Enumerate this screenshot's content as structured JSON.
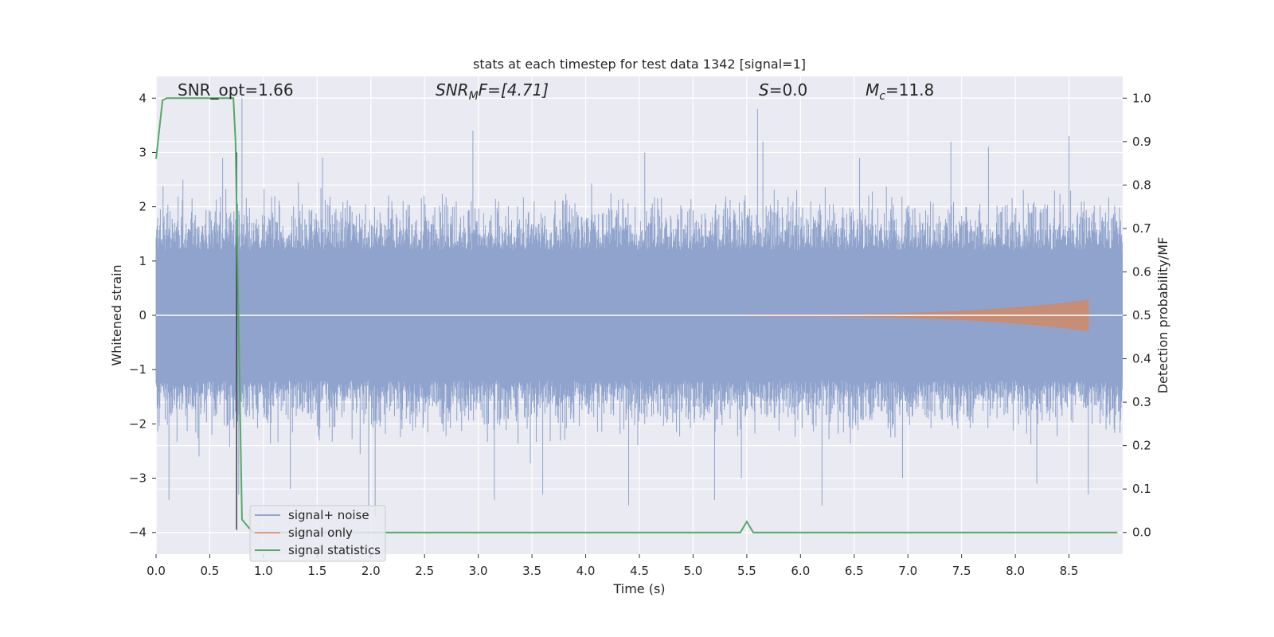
{
  "chart_data": {
    "type": "line",
    "title": "stats at each timestep for test data 1342 [signal=1]",
    "xlabel": "Time (s)",
    "ylabel_left": "Whitened strain",
    "ylabel_right": "Detection probability/MF",
    "xlim": [
      0.0,
      9.0
    ],
    "ylim_left": [
      -4.4,
      4.4
    ],
    "ylim_right": [
      -0.05,
      1.05
    ],
    "xticks": [
      0.0,
      0.5,
      1.0,
      1.5,
      2.0,
      2.5,
      3.0,
      3.5,
      4.0,
      4.5,
      5.0,
      5.5,
      6.0,
      6.5,
      7.0,
      7.5,
      8.0,
      8.5
    ],
    "xtick_labels": [
      "0.0",
      "0.5",
      "1.0",
      "1.5",
      "2.0",
      "2.5",
      "3.0",
      "3.5",
      "4.0",
      "4.5",
      "5.0",
      "5.5",
      "6.0",
      "6.5",
      "7.0",
      "7.5",
      "8.0",
      "8.5"
    ],
    "yticks_left": [
      -4,
      -3,
      -2,
      -1,
      0,
      1,
      2,
      3,
      4
    ],
    "ytick_labels_left": [
      "−4",
      "−3",
      "−2",
      "−1",
      "0",
      "1",
      "2",
      "3",
      "4"
    ],
    "yticks_right": [
      0.0,
      0.1,
      0.2,
      0.3,
      0.4,
      0.5,
      0.6,
      0.7,
      0.8,
      0.9,
      1.0
    ],
    "ytick_labels_right": [
      "0.0",
      "0.1",
      "0.2",
      "0.3",
      "0.4",
      "0.5",
      "0.6",
      "0.7",
      "0.8",
      "0.9",
      "1.0"
    ],
    "grid": true,
    "annotations": {
      "snr_opt": "SNR_opt=1.66",
      "snr_mf_main": "SNR",
      "snr_mf_sub": "M",
      "snr_mf_rest": "F=[4.71]",
      "s_main": "S",
      "s_rest": "=0.0",
      "mc_main": "M",
      "mc_sub": "c",
      "mc_rest": "=11.8"
    },
    "vertical_line_x": 0.75,
    "series": [
      {
        "name": "signal+ noise",
        "color": "#8fa3cc",
        "axis": "left",
        "kind": "noise",
        "envelope_peak_points": [
          [
            0.12,
            -3.4
          ],
          [
            0.25,
            2.5
          ],
          [
            0.4,
            -2.6
          ],
          [
            0.62,
            2.9
          ],
          [
            0.77,
            -3.3
          ],
          [
            0.8,
            4.0
          ],
          [
            1.25,
            -3.2
          ],
          [
            1.55,
            2.9
          ],
          [
            1.98,
            -3.7
          ],
          [
            2.04,
            -3.7
          ],
          [
            2.95,
            3.4
          ],
          [
            3.15,
            -3.4
          ],
          [
            3.6,
            -3.3
          ],
          [
            4.4,
            -3.5
          ],
          [
            4.55,
            3.0
          ],
          [
            5.2,
            -3.4
          ],
          [
            5.45,
            -3.0
          ],
          [
            5.6,
            3.8
          ],
          [
            5.65,
            3.2
          ],
          [
            6.2,
            -3.5
          ],
          [
            6.55,
            2.9
          ],
          [
            6.95,
            -3.0
          ],
          [
            7.4,
            3.2
          ],
          [
            7.75,
            3.1
          ],
          [
            8.2,
            -3.1
          ],
          [
            8.5,
            3.3
          ],
          [
            8.68,
            -3.3
          ]
        ]
      },
      {
        "name": "signal only",
        "color": "#dd8452",
        "axis": "left",
        "kind": "chirp",
        "x_start": 5.5,
        "x_end": 8.68,
        "amp_start": 0.01,
        "amp_end": 0.28
      },
      {
        "name": "signal statistics",
        "color": "#55a868",
        "axis": "right",
        "x": [
          0.0,
          0.06,
          0.1,
          0.72,
          0.74,
          0.76,
          0.8,
          0.9,
          5.44,
          5.5,
          5.56,
          7.5,
          8.95
        ],
        "y": [
          0.86,
          0.995,
          1.0,
          1.0,
          0.9,
          0.6,
          0.03,
          0.0,
          0.0,
          0.025,
          0.0,
          0.0,
          0.0
        ]
      }
    ],
    "legend_position": "lower-left",
    "legend": [
      "signal+ noise",
      "signal only",
      "signal statistics"
    ]
  }
}
